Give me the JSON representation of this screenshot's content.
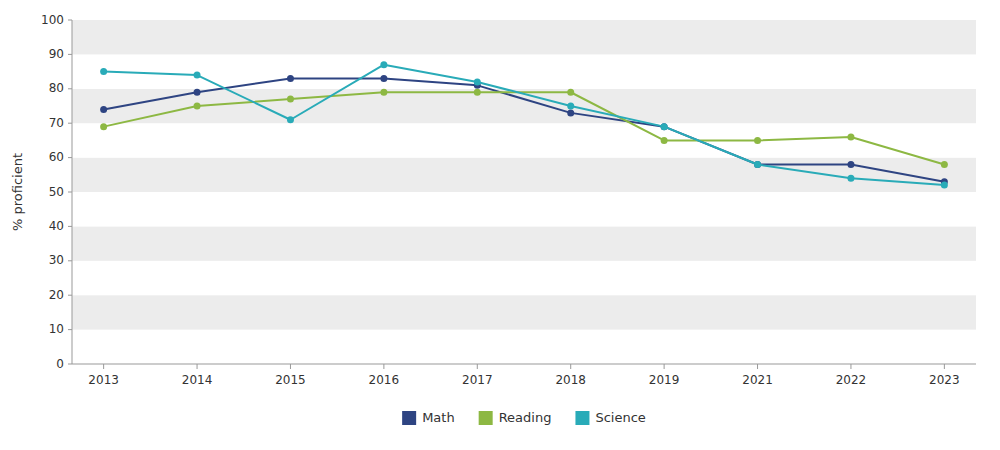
{
  "chart_data": {
    "type": "line",
    "categories": [
      "2013",
      "2014",
      "2015",
      "2016",
      "2017",
      "2018",
      "2019",
      "2021",
      "2022",
      "2023"
    ],
    "series": [
      {
        "name": "Math",
        "color": "#2E4482",
        "values": [
          74,
          79,
          83,
          83,
          81,
          73,
          69,
          58,
          58,
          53
        ]
      },
      {
        "name": "Reading",
        "color": "#8DB843",
        "values": [
          69,
          75,
          77,
          79,
          79,
          79,
          65,
          65,
          66,
          58
        ]
      },
      {
        "name": "Science",
        "color": "#29ABB8",
        "values": [
          85,
          84,
          71,
          87,
          82,
          75,
          69,
          58,
          54,
          52
        ]
      }
    ],
    "y_label": "% proficient",
    "ylim": [
      0,
      100
    ],
    "yticks": [
      0,
      10,
      20,
      30,
      40,
      50,
      60,
      70,
      80,
      90,
      100
    ],
    "grid": false,
    "legend": "bottom",
    "marker": "circle"
  }
}
